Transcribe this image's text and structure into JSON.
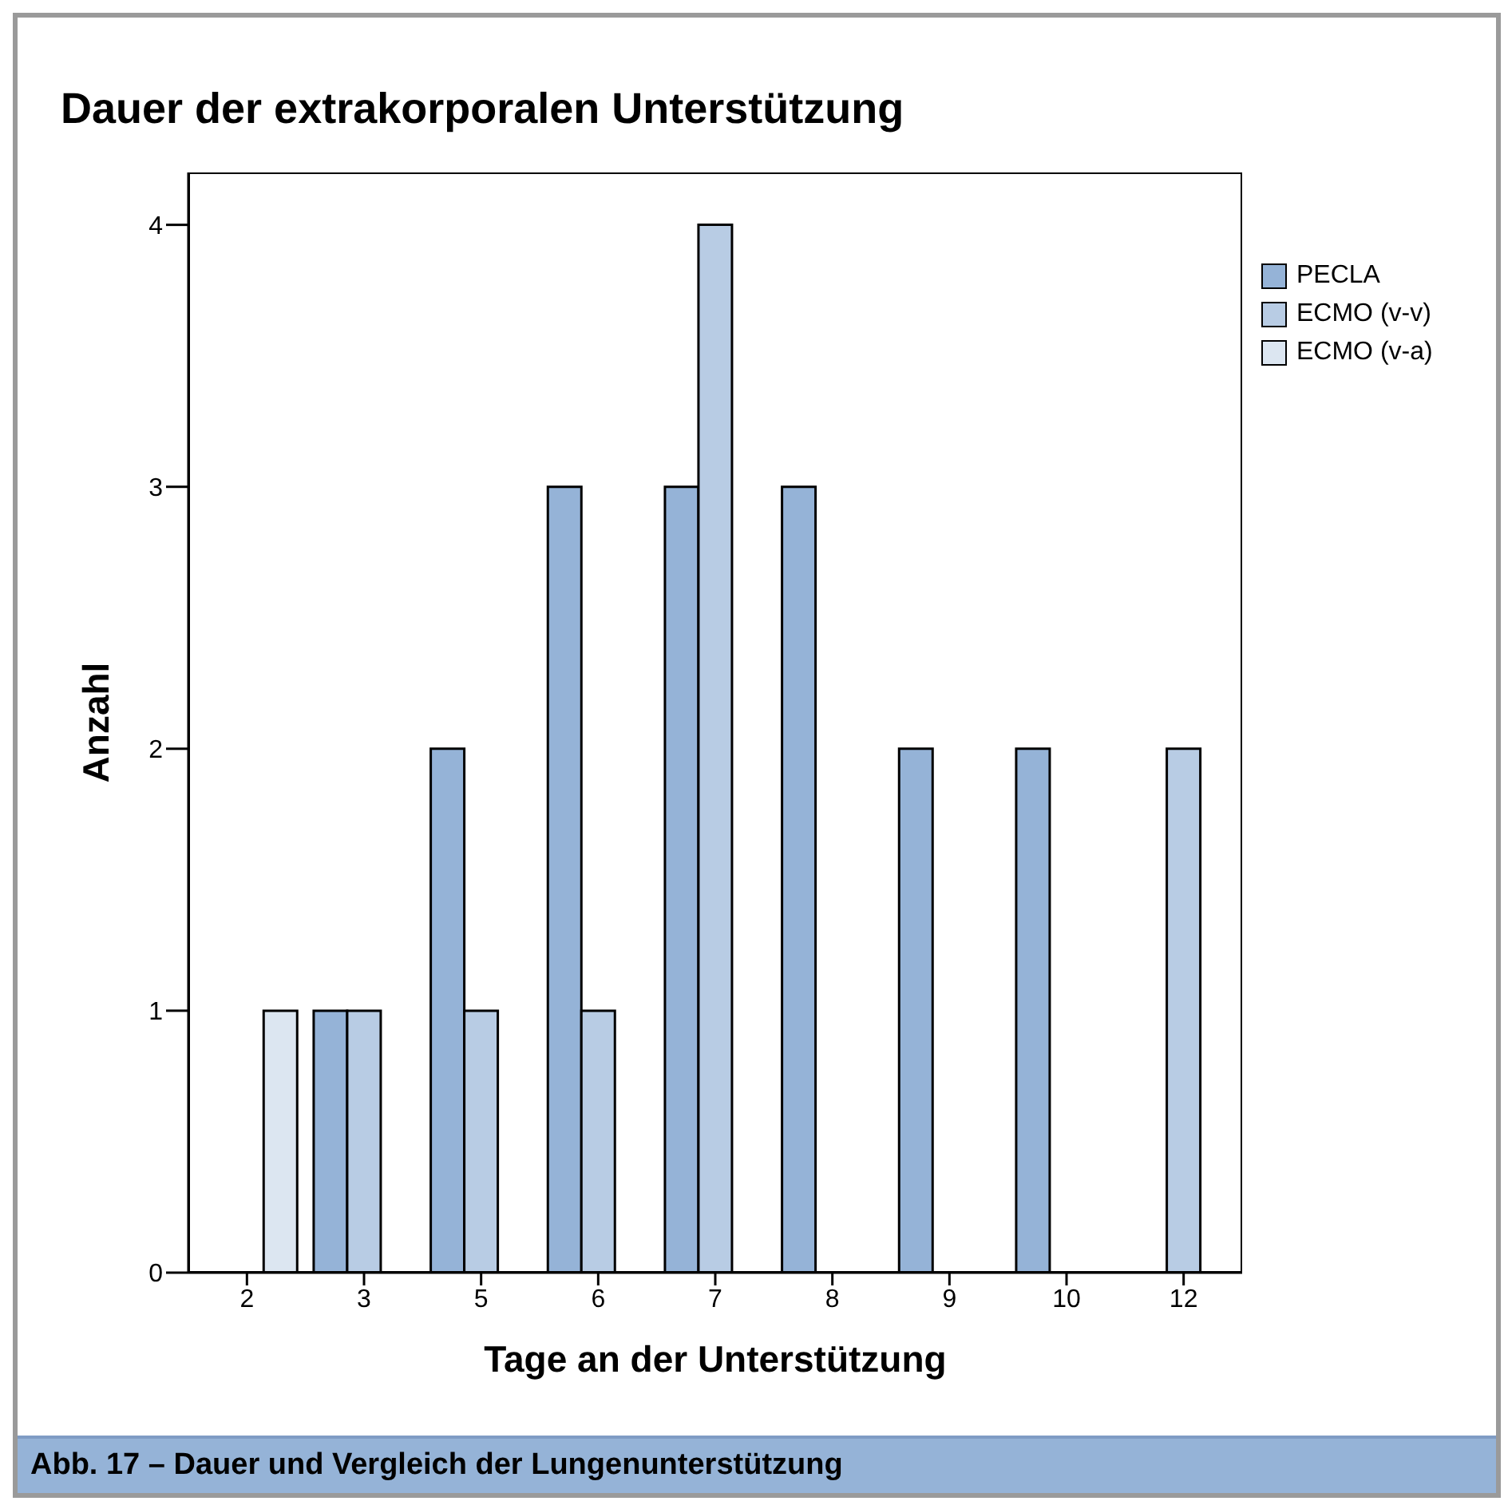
{
  "chart_data": {
    "type": "bar",
    "title": "Dauer der extrakorporalen Unterstützung",
    "xlabel": "Tage an der Unterstützung",
    "ylabel": "Anzahl",
    "categories": [
      "2",
      "3",
      "5",
      "6",
      "7",
      "8",
      "9",
      "10",
      "12"
    ],
    "series": [
      {
        "name": "PECLA",
        "color": "#95b3d7",
        "values": [
          0,
          1,
          2,
          3,
          3,
          3,
          2,
          2,
          0
        ]
      },
      {
        "name": "ECMO (v-v)",
        "color": "#b8cce4",
        "values": [
          0,
          1,
          1,
          1,
          4,
          0,
          0,
          0,
          2
        ]
      },
      {
        "name": "ECMO (v-a)",
        "color": "#dce6f1",
        "values": [
          1,
          0,
          0,
          0,
          0,
          0,
          0,
          0,
          0
        ]
      }
    ],
    "ylim": [
      0,
      4.2
    ],
    "yticks": [
      0,
      1,
      2,
      3,
      4
    ],
    "grid": false,
    "legend": "top right",
    "annotations": [
      "Abb. 17 – Dauer und Vergleich der Lungenunterstützung"
    ]
  }
}
